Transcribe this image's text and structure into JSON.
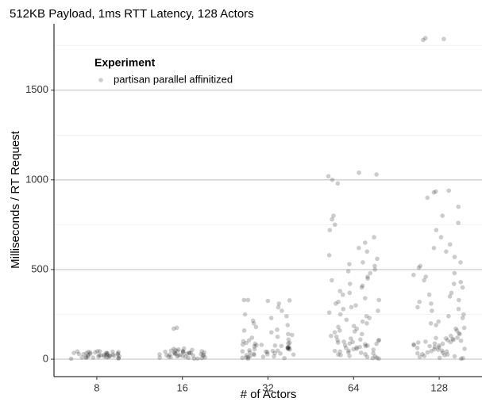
{
  "chart_data": {
    "type": "jitter-scatter",
    "title": "512KB Payload, 1ms RTT Latency, 128 Actors",
    "x_label": "# of Actors",
    "y_label": "Milliseconds / RT Request",
    "legend_title": "Experiment",
    "legend_position": "top-left",
    "categories": [
      "8",
      "16",
      "32",
      "64",
      "128"
    ],
    "ylim": [
      -97,
      1870
    ],
    "yticks": [
      0,
      500,
      1000,
      1500
    ],
    "minor_yticks": [
      250,
      750,
      1250,
      1750
    ],
    "grid": true,
    "series": [
      {
        "name": "partisan parallel affinitized",
        "color": "#000000",
        "opacity": 0.2,
        "groups": [
          [
            3,
            5,
            8,
            10,
            12,
            14,
            15,
            18,
            20,
            22,
            24,
            25,
            26,
            28,
            30,
            31,
            33,
            35,
            36,
            38,
            40,
            42,
            43,
            45,
            6,
            11,
            16,
            21,
            27,
            32,
            37,
            41,
            19,
            23,
            29,
            34,
            9,
            13,
            17,
            44
          ],
          [
            3,
            6,
            9,
            12,
            15,
            18,
            20,
            22,
            25,
            27,
            30,
            32,
            35,
            38,
            40,
            42,
            45,
            48,
            50,
            55,
            58,
            60,
            8,
            14,
            19,
            24,
            28,
            33,
            37,
            41,
            46,
            52,
            11,
            17,
            21,
            26,
            31,
            36,
            170,
            175,
            4,
            44
          ],
          [
            3,
            6,
            10,
            14,
            18,
            22,
            26,
            30,
            34,
            38,
            42,
            46,
            50,
            54,
            58,
            62,
            66,
            70,
            74,
            78,
            82,
            86,
            90,
            8,
            16,
            24,
            32,
            40,
            48,
            56,
            64,
            72,
            80,
            88,
            12,
            28,
            44,
            60,
            76,
            92,
            100,
            110,
            120,
            135,
            150,
            165,
            180,
            200,
            215,
            230,
            250,
            270,
            290,
            310,
            325,
            330,
            330,
            328,
            105,
            125,
            140,
            160,
            190,
            240
          ],
          [
            3,
            8,
            13,
            18,
            23,
            28,
            33,
            38,
            43,
            48,
            53,
            58,
            63,
            68,
            73,
            78,
            83,
            88,
            93,
            98,
            103,
            108,
            110,
            6,
            16,
            26,
            36,
            46,
            56,
            66,
            76,
            86,
            96,
            106,
            115,
            125,
            140,
            155,
            170,
            185,
            200,
            220,
            240,
            260,
            280,
            300,
            320,
            340,
            360,
            380,
            400,
            420,
            440,
            460,
            480,
            500,
            520,
            540,
            560,
            580,
            600,
            620,
            650,
            680,
            720,
            750,
            780,
            800,
            1000,
            1020,
            1040,
            1030,
            980,
            150,
            180,
            210,
            250,
            290,
            330,
            370,
            410,
            450,
            490,
            530,
            130,
            160,
            230,
            270,
            310
          ],
          [
            3,
            8,
            13,
            18,
            23,
            28,
            33,
            38,
            43,
            48,
            53,
            58,
            63,
            68,
            73,
            78,
            83,
            88,
            93,
            98,
            103,
            108,
            113,
            118,
            120,
            6,
            16,
            26,
            36,
            46,
            56,
            66,
            76,
            86,
            96,
            106,
            116,
            130,
            145,
            160,
            175,
            190,
            210,
            230,
            250,
            270,
            290,
            310,
            330,
            350,
            370,
            400,
            420,
            440,
            460,
            480,
            510,
            540,
            570,
            600,
            640,
            680,
            720,
            760,
            800,
            850,
            900,
            940,
            935,
            930,
            1780,
            1785,
            1790,
            140,
            170,
            200,
            240,
            280,
            320,
            360,
            430,
            470,
            520,
            620
          ]
        ]
      }
    ]
  }
}
